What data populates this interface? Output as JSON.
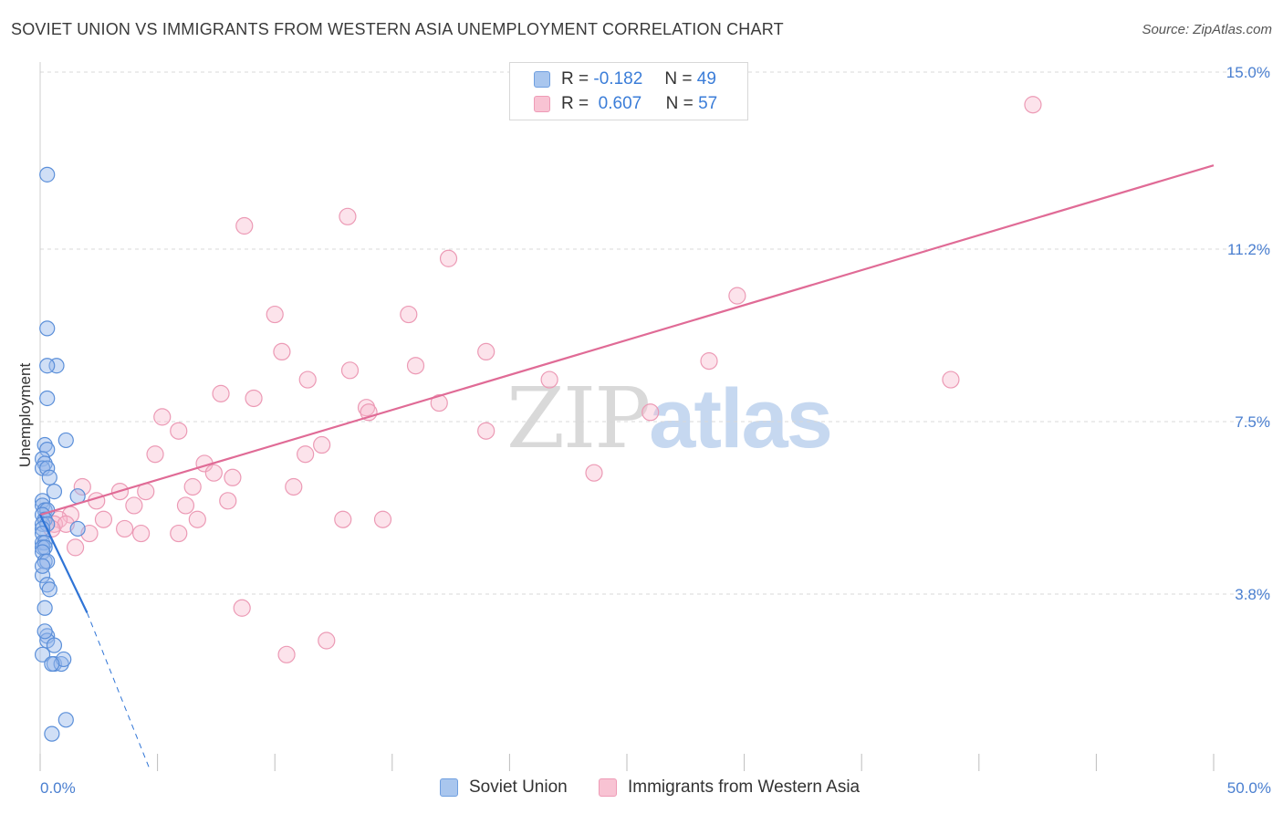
{
  "title": "SOVIET UNION VS IMMIGRANTS FROM WESTERN ASIA UNEMPLOYMENT CORRELATION CHART",
  "source": "Source: ZipAtlas.com",
  "legend": {
    "r_label": "R =",
    "n_label": "N =",
    "rows": [
      {
        "r": "-0.182",
        "n": "49",
        "color": "#a9c6ee",
        "border": "#6f9fe0"
      },
      {
        "r": "0.607",
        "n": "57",
        "color": "#f8c3d3",
        "border": "#ee9bb6"
      }
    ]
  },
  "bottom_legend": [
    "Soviet Union",
    "Immigrants from Western Asia"
  ],
  "watermark": {
    "zip": "ZIP",
    "atlas": "atlas"
  },
  "colors": {
    "blue_fill": "rgba(150,185,235,0.45)",
    "blue_stroke": "#5b8fd9",
    "blue_line": "#2f74d6",
    "pink_fill": "rgba(247,185,205,0.40)",
    "pink_stroke": "#ec9ab5",
    "pink_line": "#e06b96",
    "grid": "#d8d8d8",
    "axis_tick": "#4a7fd0"
  },
  "chart_data": {
    "type": "scatter",
    "title": "SOVIET UNION VS IMMIGRANTS FROM WESTERN ASIA UNEMPLOYMENT CORRELATION CHART",
    "xlabel": "",
    "ylabel": "Unemployment",
    "xlim": [
      0,
      50
    ],
    "ylim": [
      0,
      15.0
    ],
    "x_tick_labels": [
      "0.0%",
      "50.0%"
    ],
    "y_ticks": [
      3.8,
      7.5,
      11.2,
      15.0
    ],
    "y_tick_labels": [
      "3.8%",
      "7.5%",
      "11.2%",
      "15.0%"
    ],
    "series": [
      {
        "name": "Soviet Union",
        "points": [
          [
            0.3,
            12.8
          ],
          [
            0.3,
            9.5
          ],
          [
            0.7,
            8.7
          ],
          [
            0.3,
            8.7
          ],
          [
            0.3,
            8.0
          ],
          [
            1.1,
            7.1
          ],
          [
            0.2,
            7.0
          ],
          [
            0.3,
            6.9
          ],
          [
            0.1,
            6.7
          ],
          [
            0.2,
            6.6
          ],
          [
            0.1,
            6.5
          ],
          [
            0.3,
            6.5
          ],
          [
            0.4,
            6.3
          ],
          [
            0.6,
            6.0
          ],
          [
            1.6,
            5.9
          ],
          [
            0.1,
            5.8
          ],
          [
            0.1,
            5.7
          ],
          [
            0.2,
            5.6
          ],
          [
            0.3,
            5.6
          ],
          [
            0.1,
            5.5
          ],
          [
            0.2,
            5.4
          ],
          [
            0.1,
            5.3
          ],
          [
            0.3,
            5.3
          ],
          [
            1.6,
            5.2
          ],
          [
            0.1,
            5.2
          ],
          [
            0.1,
            5.1
          ],
          [
            0.1,
            4.9
          ],
          [
            0.2,
            4.9
          ],
          [
            0.1,
            4.8
          ],
          [
            0.2,
            4.8
          ],
          [
            0.1,
            4.7
          ],
          [
            0.2,
            4.5
          ],
          [
            0.3,
            4.5
          ],
          [
            0.1,
            4.2
          ],
          [
            0.3,
            4.0
          ],
          [
            0.4,
            3.9
          ],
          [
            0.2,
            3.5
          ],
          [
            0.3,
            2.9
          ],
          [
            0.3,
            2.8
          ],
          [
            0.6,
            2.7
          ],
          [
            0.1,
            2.5
          ],
          [
            0.6,
            2.3
          ],
          [
            0.9,
            2.3
          ],
          [
            1.0,
            2.4
          ],
          [
            0.5,
            2.3
          ],
          [
            1.1,
            1.1
          ],
          [
            0.5,
            0.8
          ],
          [
            0.2,
            3.0
          ],
          [
            0.1,
            4.4
          ]
        ],
        "trend": {
          "x0": 0.0,
          "y0": 5.5,
          "x1": 2.0,
          "y1": 3.4,
          "dashed_to_x": 4.7,
          "dashed_to_y": 0.0
        }
      },
      {
        "name": "Immigrants from Western Asia",
        "points": [
          [
            42.3,
            14.3
          ],
          [
            13.1,
            11.9
          ],
          [
            8.7,
            11.7
          ],
          [
            17.4,
            11.0
          ],
          [
            29.7,
            10.2
          ],
          [
            10.0,
            9.8
          ],
          [
            15.7,
            9.8
          ],
          [
            10.3,
            9.0
          ],
          [
            19.0,
            9.0
          ],
          [
            28.5,
            8.8
          ],
          [
            16.0,
            8.7
          ],
          [
            13.2,
            8.6
          ],
          [
            11.4,
            8.4
          ],
          [
            21.7,
            8.4
          ],
          [
            7.7,
            8.1
          ],
          [
            38.8,
            8.4
          ],
          [
            9.1,
            8.0
          ],
          [
            17.0,
            7.9
          ],
          [
            13.9,
            7.8
          ],
          [
            14.0,
            7.7
          ],
          [
            26.0,
            7.7
          ],
          [
            5.2,
            7.6
          ],
          [
            5.9,
            7.3
          ],
          [
            19.0,
            7.3
          ],
          [
            12.0,
            7.0
          ],
          [
            11.3,
            6.8
          ],
          [
            4.9,
            6.8
          ],
          [
            7.0,
            6.6
          ],
          [
            7.4,
            6.4
          ],
          [
            8.2,
            6.3
          ],
          [
            23.6,
            6.4
          ],
          [
            6.5,
            6.1
          ],
          [
            10.8,
            6.1
          ],
          [
            1.8,
            6.1
          ],
          [
            3.4,
            6.0
          ],
          [
            4.5,
            6.0
          ],
          [
            2.4,
            5.8
          ],
          [
            4.0,
            5.7
          ],
          [
            8.0,
            5.8
          ],
          [
            6.2,
            5.7
          ],
          [
            1.3,
            5.5
          ],
          [
            2.7,
            5.4
          ],
          [
            0.8,
            5.4
          ],
          [
            0.6,
            5.3
          ],
          [
            1.1,
            5.3
          ],
          [
            3.6,
            5.2
          ],
          [
            6.7,
            5.4
          ],
          [
            12.9,
            5.4
          ],
          [
            14.6,
            5.4
          ],
          [
            0.5,
            5.2
          ],
          [
            2.1,
            5.1
          ],
          [
            5.9,
            5.1
          ],
          [
            4.3,
            5.1
          ],
          [
            1.5,
            4.8
          ],
          [
            8.6,
            3.5
          ],
          [
            12.2,
            2.8
          ],
          [
            10.5,
            2.5
          ]
        ],
        "trend": {
          "x0": 0.0,
          "y0": 5.5,
          "x1": 50.0,
          "y1": 13.0
        }
      }
    ]
  }
}
